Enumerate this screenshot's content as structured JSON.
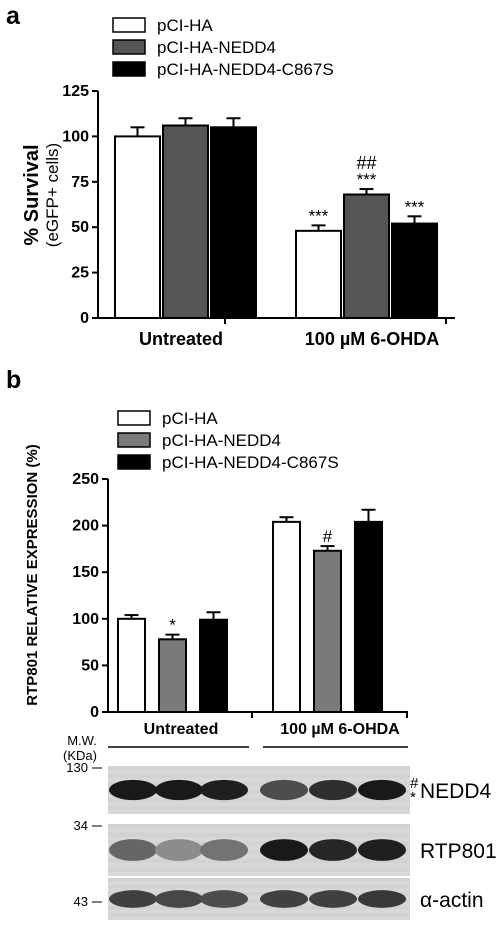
{
  "panel_a_label": "a",
  "panel_b_label": "b",
  "colors": {
    "white": "#ffffff",
    "gray": "#555555",
    "black": "#000000",
    "gray_b": "#7a7a7a"
  },
  "chart_data": [
    {
      "type": "bar",
      "panel": "a",
      "title": "",
      "ylabel": "% Survival",
      "ylabel_sub": "(eGFP+ cells)",
      "ylim": [
        0,
        125
      ],
      "yticks": [
        "0",
        "25",
        "50",
        "75",
        "100",
        "125"
      ],
      "categories": [
        "Untreated",
        "100 µM 6-OHDA"
      ],
      "legend_position": "top-left",
      "series": [
        {
          "name": "pCI-HA",
          "values": [
            100,
            48
          ],
          "errors": [
            5,
            3
          ],
          "color": "#ffffff",
          "annotations": [
            "",
            "***"
          ]
        },
        {
          "name": "pCI-HA-NEDD4",
          "values": [
            106,
            68
          ],
          "errors": [
            4,
            3
          ],
          "color": "#555555",
          "annotations": [
            "",
            "***"
          ],
          "annotations_top": [
            "",
            "##"
          ]
        },
        {
          "name": "pCI-HA-NEDD4-C867S",
          "values": [
            105,
            52
          ],
          "errors": [
            5,
            4
          ],
          "color": "#000000",
          "annotations": [
            "",
            "***"
          ]
        }
      ]
    },
    {
      "type": "bar",
      "panel": "b",
      "title": "",
      "ylabel": "RTP801 RELATIVE EXPRESSION (%)",
      "ylim": [
        0,
        250
      ],
      "yticks": [
        "0",
        "50",
        "100",
        "150",
        "200",
        "250"
      ],
      "categories": [
        "Untreated",
        "100 µM 6-OHDA"
      ],
      "legend_position": "top-left",
      "series": [
        {
          "name": "pCI-HA",
          "values": [
            100,
            204
          ],
          "errors": [
            4,
            5
          ],
          "color": "#ffffff",
          "annotations": [
            "",
            ""
          ]
        },
        {
          "name": "pCI-HA-NEDD4",
          "values": [
            78,
            173
          ],
          "errors": [
            5,
            5
          ],
          "color": "#7a7a7a",
          "annotations": [
            "*",
            "#"
          ]
        },
        {
          "name": "pCI-HA-NEDD4-C867S",
          "values": [
            99,
            204
          ],
          "errors": [
            8,
            13
          ],
          "color": "#000000",
          "annotations": [
            "",
            ""
          ]
        }
      ]
    }
  ],
  "blots": {
    "mw_label": "M.W.",
    "mw_unit": "(KDa)",
    "group_labels": [
      "Untreated",
      "100 µM 6-OHDA"
    ],
    "rows": [
      {
        "name": "NEDD4",
        "marker": "#",
        "marker2": "*",
        "mw": "130",
        "intensity": [
          0.9,
          0.9,
          0.88,
          0.7,
          0.82,
          0.9
        ]
      },
      {
        "name": "RTP801",
        "marker": "",
        "marker2": "",
        "mw": "34",
        "intensity": [
          0.6,
          0.45,
          0.55,
          0.9,
          0.85,
          0.88
        ]
      },
      {
        "name": "α-actin",
        "marker": "",
        "marker2": "",
        "mw": "43",
        "intensity": [
          0.75,
          0.72,
          0.7,
          0.75,
          0.75,
          0.78
        ]
      }
    ]
  }
}
